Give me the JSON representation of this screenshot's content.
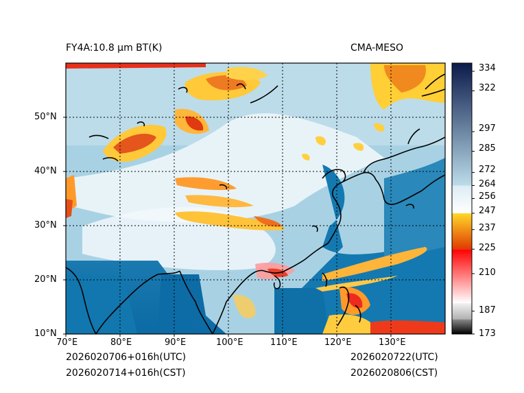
{
  "title_left": "FY4A:10.8 µm BT(K)",
  "title_right": "CMA-MESO",
  "footer": {
    "init_utc": "2026020706+016h(UTC)",
    "init_cst": "2026020714+016h(CST)",
    "valid_utc": "2026020722(UTC)",
    "valid_cst": "2026020806(CST)"
  },
  "map": {
    "lon_range": [
      70,
      140
    ],
    "lat_range": [
      10,
      60
    ],
    "lon_ticks": [
      70,
      80,
      90,
      100,
      110,
      120,
      130
    ],
    "lon_labels": [
      "70°E",
      "80°E",
      "90°E",
      "100°E",
      "110°E",
      "120°E",
      "130°E"
    ],
    "lat_ticks": [
      10,
      20,
      30,
      40,
      50
    ],
    "lat_labels": [
      "10°N",
      "20°N",
      "30°N",
      "40°N",
      "50°N"
    ],
    "gridlines": "dotted"
  },
  "colorbar": {
    "range": [
      173,
      339
    ],
    "ticks": [
      334,
      322,
      297,
      285,
      272,
      264,
      256,
      247,
      237,
      225,
      210,
      187,
      173
    ],
    "tick_labels": [
      "334",
      "322",
      "297",
      "285",
      "272",
      "264",
      "256",
      "247",
      "237",
      "225",
      "210",
      "187",
      "173"
    ],
    "segments": [
      {
        "from": 173,
        "to": 182,
        "colors": [
          "#000000",
          "#8a8a8a"
        ]
      },
      {
        "from": 182,
        "to": 192,
        "colors": [
          "#b0b0b0",
          "#f2f2f2"
        ]
      },
      {
        "from": 192,
        "to": 225,
        "colors": [
          "#ffffff",
          "#ff0000"
        ]
      },
      {
        "from": 225,
        "to": 247,
        "colors": [
          "#e03a00",
          "#ffd92a"
        ]
      },
      {
        "from": 247,
        "to": 264,
        "colors": [
          "#ffffff",
          "#dcecf4"
        ]
      },
      {
        "from": 264,
        "to": 339,
        "colors": [
          "#bcdcea",
          "#0a1a4a"
        ]
      }
    ]
  },
  "colors": {
    "ocean": "#0e6da6",
    "land_warm": "#9ccbe0",
    "cloud_mid": "#d9ebf3",
    "cloud_cold": "#ffd92a",
    "cloud_very_cold": "#e03a00",
    "coast": "#000000"
  }
}
